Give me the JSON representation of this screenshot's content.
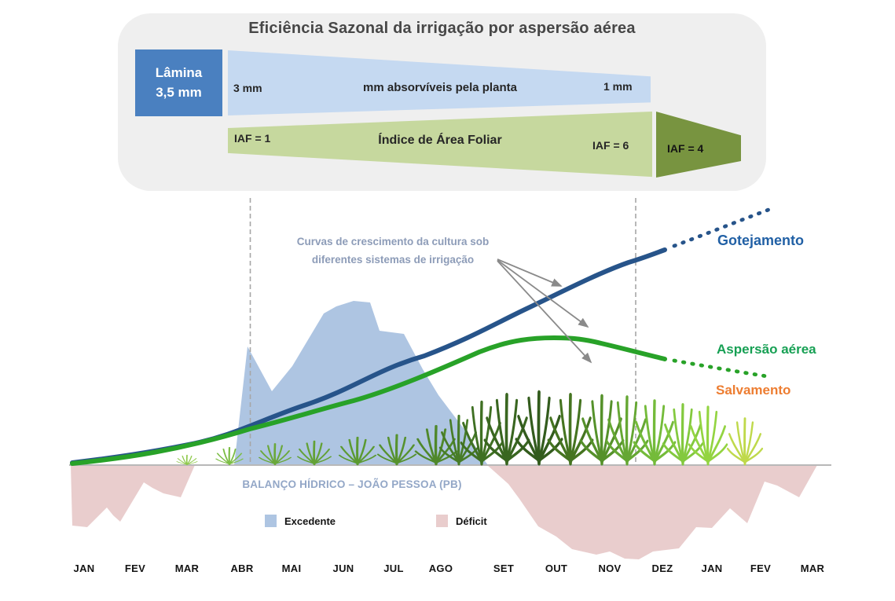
{
  "panel": {
    "title": "Eficiência Sazonal da irrigação por aspersão aérea",
    "lamina_box": {
      "line1": "Lâmina",
      "line2": "3,5 mm",
      "color": "#4a80c0"
    },
    "absorption_band": {
      "start": "3 mm",
      "label": "mm absorvíveis pela planta",
      "end": "1 mm",
      "color": "#c5d9f1"
    },
    "leaf_area_band": {
      "start": "IAF = 1",
      "label": "Índice de Área Foliar",
      "end": "IAF = 6",
      "color": "#c6d89e"
    },
    "leaf_area_arrow": {
      "value": "IAF = 4",
      "color": "#789440"
    }
  },
  "chart": {
    "annotation": {
      "line1": "Curvas de crescimento da cultura sob",
      "line2": "diferentes sistemas de irrigação"
    },
    "curve_labels": {
      "gotejamento": {
        "text": "Gotejamento",
        "color": "#2160a5"
      },
      "aspersao_aerea": {
        "text": "Aspersão aérea",
        "color": "#17a054"
      },
      "salvamento": {
        "text": "Salvamento",
        "color": "#ed7d31"
      }
    },
    "water_balance": {
      "title": "BALANÇO HÍDRICO – JOÃO PESSOA (PB)",
      "legend": [
        {
          "label": "Excedente",
          "color": "#aec5e2"
        },
        {
          "label": "Déficit",
          "color": "#e9cdcd"
        }
      ]
    },
    "months": [
      "JAN",
      "FEV",
      "MAR",
      "ABR",
      "MAI",
      "JUN",
      "JUL",
      "AGO",
      "SET",
      "OUT",
      "NOV",
      "DEZ",
      "JAN",
      "FEV",
      "MAR"
    ]
  },
  "chart_data": {
    "type": "line",
    "x_categories": [
      "JAN",
      "FEV",
      "MAR",
      "ABR",
      "MAI",
      "JUN",
      "JUL",
      "AGO",
      "SET",
      "OUT",
      "NOV",
      "DEZ",
      "JAN",
      "FEV",
      "MAR"
    ],
    "title": "Curvas de crescimento da cultura sob diferentes sistemas de irrigação",
    "grid": false,
    "series": [
      {
        "name": "Gotejamento",
        "color": "#27548a",
        "style": "solid, dotted projection after DEZ, continuously rising",
        "growth_relative": [
          0.01,
          0.04,
          0.08,
          0.16,
          0.25,
          0.34,
          0.43,
          0.52,
          0.62,
          0.72,
          0.81,
          0.9,
          0.95,
          1.0,
          null
        ]
      },
      {
        "name": "Aspersão aérea",
        "color": "#28a228",
        "style": "solid, peaks near OUT then declines, dotted projection after DEZ",
        "growth_relative": [
          0.01,
          0.03,
          0.07,
          0.14,
          0.22,
          0.3,
          0.38,
          0.45,
          0.53,
          0.56,
          0.54,
          0.47,
          0.44,
          0.41,
          null
        ]
      },
      {
        "name": "Salvamento",
        "color": "#ed7d31",
        "style": "label only; curve hidden behind sugarcane illustrations",
        "growth_relative": null
      }
    ],
    "water_balance_areas": [
      {
        "name": "Excedente",
        "position": "above baseline",
        "color": "#aec5e2",
        "span": "ABR–AGO",
        "relative_values": {
          "ABR": 0.74,
          "MAI": 0.55,
          "JUN": 1.0,
          "JUL": 0.82,
          "AGO": 0.44
        }
      },
      {
        "name": "Déficit",
        "position": "below baseline",
        "color": "#e9cdcd",
        "spans": [
          "JAN–MAR",
          "SET–MAR"
        ],
        "relative_values": {
          "JAN": 0.62,
          "FEV": 0.55,
          "MAR": 0.2,
          "SET": 0.5,
          "OUT": 0.85,
          "NOV": 0.95,
          "DEZ": 1.0,
          "JAN_2": 0.65,
          "FEV_2": 0.45,
          "MAR_2": 0.05
        }
      }
    ],
    "reference_lines": [
      "vertical dashed line near ABR",
      "vertical dashed line near DEZ"
    ],
    "illustration_note": "sugarcane plants grow taller left to right along the baseline, turning yellow-green at far right"
  }
}
